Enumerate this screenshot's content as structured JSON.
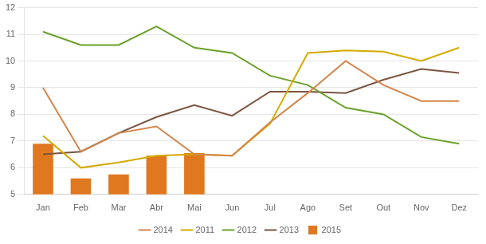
{
  "chart_data": {
    "type": "bar",
    "categories": [
      "Jan",
      "Feb",
      "Mar",
      "Abr",
      "Mai",
      "Jun",
      "Jul",
      "Ago",
      "Set",
      "Out",
      "Nov",
      "Dez"
    ],
    "series": [
      {
        "name": "2015",
        "type": "bar",
        "color": "#E07820",
        "values": [
          6.9,
          5.6,
          5.75,
          6.45,
          6.55,
          null,
          null,
          null,
          null,
          null,
          null,
          null
        ]
      },
      {
        "name": "2014",
        "type": "line",
        "color": "#D2854A",
        "values": [
          9.0,
          6.6,
          7.3,
          7.55,
          6.5,
          6.45,
          7.7,
          8.8,
          10.0,
          9.1,
          8.5,
          8.5
        ]
      },
      {
        "name": "2011",
        "type": "line",
        "color": "#D4AA00",
        "values": [
          7.2,
          6.0,
          6.2,
          6.45,
          6.5,
          6.45,
          7.65,
          10.3,
          10.4,
          10.35,
          10.0,
          10.5
        ]
      },
      {
        "name": "2012",
        "type": "line",
        "color": "#6BA12A",
        "values": [
          11.1,
          10.6,
          10.6,
          11.3,
          10.5,
          10.3,
          9.45,
          9.1,
          8.25,
          8.0,
          7.15,
          6.9
        ]
      },
      {
        "name": "2013",
        "type": "line",
        "color": "#7B5540",
        "values": [
          6.5,
          6.6,
          7.3,
          7.9,
          8.35,
          7.95,
          8.85,
          8.85,
          8.8,
          9.3,
          9.7,
          9.55
        ]
      }
    ],
    "ylim": [
      5,
      12
    ],
    "yticks": [
      5,
      6,
      7,
      8,
      9,
      10,
      11,
      12
    ],
    "grid": true,
    "legend": "bottom"
  }
}
